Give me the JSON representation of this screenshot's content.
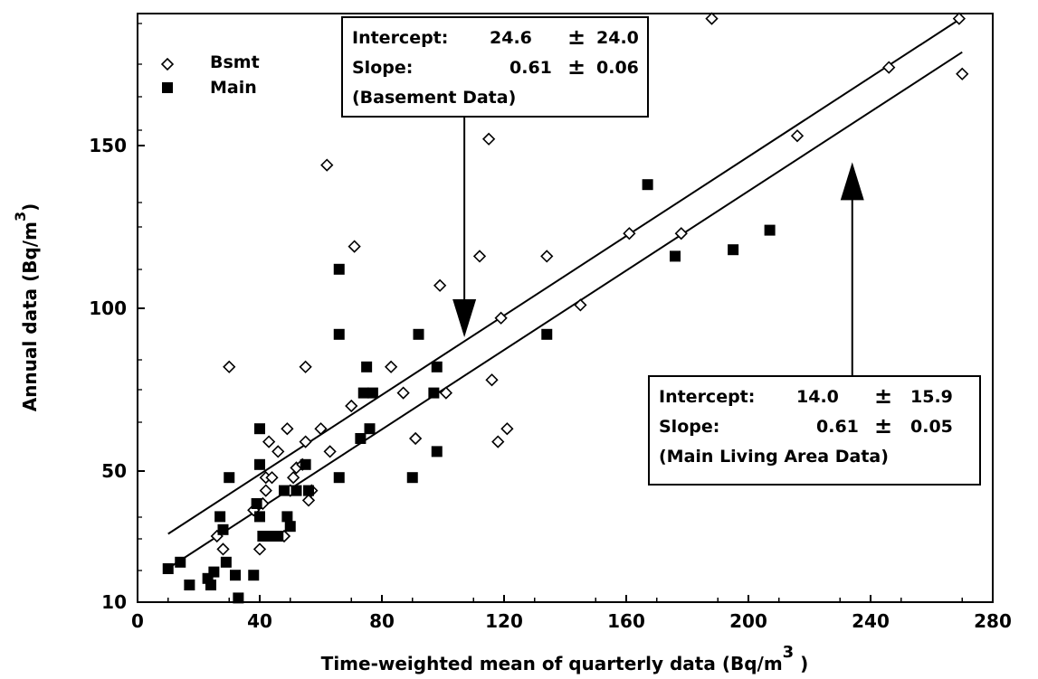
{
  "chart_data": {
    "type": "scatter",
    "xlabel": "Time-weighted mean of quarterly data (Bq/m",
    "xlabel_sup": "3",
    "xlabel_close": ")",
    "ylabel": "Annual data (Bq/m",
    "ylabel_sup": "3",
    "ylabel_close": ")",
    "xlim": [
      0,
      280
    ],
    "ylim": [
      10,
      190
    ],
    "xticks": [
      0,
      40,
      80,
      120,
      160,
      200,
      240,
      280
    ],
    "yticks": [
      10,
      50,
      100,
      150
    ],
    "legend_position": "top-left",
    "series": [
      {
        "name": "Bsmt",
        "marker": "diamond-open",
        "points": [
          [
            26,
            30
          ],
          [
            28,
            26
          ],
          [
            30,
            82
          ],
          [
            38,
            38
          ],
          [
            40,
            26
          ],
          [
            41,
            40
          ],
          [
            42,
            44
          ],
          [
            42,
            48
          ],
          [
            43,
            59
          ],
          [
            44,
            48
          ],
          [
            46,
            56
          ],
          [
            48,
            30
          ],
          [
            49,
            63
          ],
          [
            50,
            44
          ],
          [
            51,
            48
          ],
          [
            52,
            51
          ],
          [
            54,
            52
          ],
          [
            55,
            59
          ],
          [
            55,
            82
          ],
          [
            56,
            41
          ],
          [
            57,
            44
          ],
          [
            60,
            63
          ],
          [
            62,
            144
          ],
          [
            63,
            56
          ],
          [
            70,
            70
          ],
          [
            71,
            119
          ],
          [
            83,
            82
          ],
          [
            87,
            74
          ],
          [
            91,
            60
          ],
          [
            99,
            107
          ],
          [
            101,
            74
          ],
          [
            112,
            116
          ],
          [
            115,
            152
          ],
          [
            116,
            78
          ],
          [
            118,
            59
          ],
          [
            119,
            97
          ],
          [
            121,
            63
          ],
          [
            134,
            116
          ],
          [
            145,
            101
          ],
          [
            161,
            123
          ],
          [
            178,
            123
          ],
          [
            188,
            189
          ],
          [
            216,
            153
          ],
          [
            246,
            174
          ],
          [
            269,
            189
          ],
          [
            270,
            172
          ]
        ]
      },
      {
        "name": "Main",
        "marker": "square-filled",
        "points": [
          [
            10,
            20
          ],
          [
            14,
            22
          ],
          [
            17,
            15
          ],
          [
            23,
            17
          ],
          [
            24,
            15
          ],
          [
            25,
            19
          ],
          [
            27,
            36
          ],
          [
            28,
            32
          ],
          [
            29,
            22
          ],
          [
            30,
            48
          ],
          [
            32,
            18
          ],
          [
            33,
            11
          ],
          [
            38,
            18
          ],
          [
            39,
            40
          ],
          [
            40,
            52
          ],
          [
            40,
            63
          ],
          [
            40,
            36
          ],
          [
            41,
            30
          ],
          [
            43,
            30
          ],
          [
            46,
            30
          ],
          [
            48,
            44
          ],
          [
            49,
            36
          ],
          [
            50,
            33
          ],
          [
            52,
            44
          ],
          [
            55,
            52
          ],
          [
            56,
            44
          ],
          [
            66,
            112
          ],
          [
            66,
            92
          ],
          [
            66,
            48
          ],
          [
            73,
            60
          ],
          [
            74,
            74
          ],
          [
            75,
            82
          ],
          [
            76,
            63
          ],
          [
            77,
            74
          ],
          [
            90,
            48
          ],
          [
            92,
            92
          ],
          [
            97,
            74
          ],
          [
            98,
            82
          ],
          [
            98,
            56
          ],
          [
            134,
            92
          ],
          [
            167,
            138
          ],
          [
            176,
            116
          ],
          [
            195,
            118
          ],
          [
            207,
            124
          ]
        ]
      }
    ],
    "fit_lines": [
      {
        "name": "Basement Data",
        "intercept": 24.6,
        "slope": 0.61,
        "x_range": [
          10,
          270
        ]
      },
      {
        "name": "Main Living Area Data",
        "intercept": 14.0,
        "slope": 0.61,
        "x_range": [
          10,
          270
        ]
      }
    ],
    "annotations": [
      {
        "rows": [
          [
            "Intercept:",
            "24.6",
            "±",
            "24.0"
          ],
          [
            "Slope:",
            "0.61",
            "±",
            "0.06"
          ],
          [
            "(Basement Data)",
            "",
            "",
            ""
          ]
        ],
        "arrow_target": [
          107,
          90
        ]
      },
      {
        "rows": [
          [
            "Intercept:",
            "14.0",
            "±",
            "15.9"
          ],
          [
            "Slope:",
            "0.61",
            "±",
            "0.05"
          ],
          [
            "(Main Living Area Data)",
            "",
            "",
            ""
          ]
        ],
        "arrow_target": [
          234,
          146
        ]
      }
    ]
  }
}
